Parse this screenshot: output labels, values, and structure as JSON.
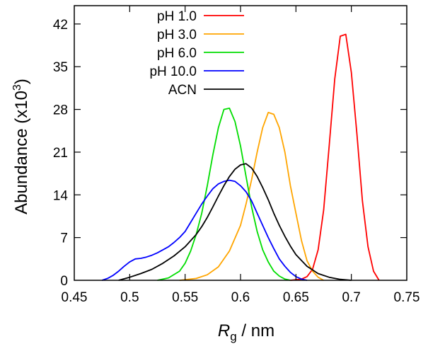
{
  "chart_data": {
    "type": "line",
    "title": "",
    "xlabel": {
      "symbol": "R",
      "subscript": "g",
      "unit": " / nm"
    },
    "ylabel": {
      "prefix": "Abundance (x10",
      "exponent": "3",
      "suffix": ")"
    },
    "xlim": [
      0.45,
      0.75
    ],
    "ylim": [
      0,
      45
    ],
    "xticks": [
      0.45,
      0.5,
      0.55,
      0.6,
      0.65,
      0.7,
      0.75
    ],
    "xtick_labels": [
      "0.45",
      "0.5",
      "0.55",
      "0.6",
      "0.65",
      "0.7",
      "0.75"
    ],
    "yticks": [
      0,
      7,
      14,
      21,
      28,
      35,
      42
    ],
    "ytick_labels": [
      "0",
      "7",
      "14",
      "21",
      "28",
      "35",
      "42"
    ],
    "grid": false,
    "legend_position": "top-left",
    "series": [
      {
        "name": "pH   1.0",
        "color": "#ff0000",
        "x": [
          0.645,
          0.655,
          0.66,
          0.665,
          0.67,
          0.675,
          0.68,
          0.685,
          0.69,
          0.695,
          0.7,
          0.705,
          0.71,
          0.715,
          0.72,
          0.725
        ],
        "y": [
          0,
          0.2,
          0.6,
          1.8,
          5,
          11.5,
          22,
          33,
          40,
          40.3,
          34,
          24,
          13,
          5.5,
          1.5,
          0
        ]
      },
      {
        "name": "pH   3.0",
        "color": "#ffa500",
        "x": [
          0.545,
          0.56,
          0.57,
          0.58,
          0.59,
          0.6,
          0.605,
          0.61,
          0.615,
          0.62,
          0.625,
          0.63,
          0.635,
          0.64,
          0.645,
          0.65,
          0.655,
          0.66,
          0.665,
          0.67,
          0.675
        ],
        "y": [
          0,
          0.3,
          0.9,
          2.2,
          4.8,
          9,
          12.5,
          16.5,
          21,
          25,
          27.5,
          27.2,
          25,
          21,
          15.5,
          11,
          6.5,
          3.2,
          1.5,
          0.5,
          0
        ]
      },
      {
        "name": "pH   6.0",
        "color": "#00dd00",
        "x": [
          0.525,
          0.535,
          0.545,
          0.55,
          0.555,
          0.56,
          0.565,
          0.57,
          0.575,
          0.58,
          0.585,
          0.59,
          0.595,
          0.6,
          0.605,
          0.61,
          0.615,
          0.62,
          0.625,
          0.63,
          0.635,
          0.64,
          0.645
        ],
        "y": [
          0,
          0.4,
          1.5,
          2.8,
          4.8,
          7.5,
          11,
          15.5,
          20.5,
          25,
          28,
          28.2,
          26,
          22,
          17,
          12,
          8,
          5,
          3,
          1.5,
          0.7,
          0.2,
          0
        ]
      },
      {
        "name": "pH 10.0",
        "color": "#0000ff",
        "x": [
          0.475,
          0.48,
          0.485,
          0.49,
          0.495,
          0.5,
          0.505,
          0.51,
          0.515,
          0.52,
          0.525,
          0.53,
          0.535,
          0.54,
          0.545,
          0.55,
          0.555,
          0.56,
          0.565,
          0.57,
          0.575,
          0.58,
          0.585,
          0.59,
          0.595,
          0.6,
          0.605,
          0.61,
          0.615,
          0.62,
          0.625,
          0.63,
          0.635,
          0.64,
          0.645,
          0.65,
          0.655,
          0.66
        ],
        "y": [
          0,
          0.3,
          0.8,
          1.5,
          2.3,
          3,
          3.5,
          3.6,
          3.8,
          4.1,
          4.5,
          5,
          5.5,
          6.2,
          7,
          8,
          9.5,
          11,
          12.5,
          13.8,
          15,
          15.8,
          16.2,
          16.4,
          16.2,
          15.5,
          14.5,
          13,
          11,
          9,
          7,
          5.2,
          3.5,
          2.3,
          1.3,
          0.6,
          0.2,
          0
        ]
      },
      {
        "name": "ACN",
        "color": "#000000",
        "x": [
          0.49,
          0.5,
          0.51,
          0.52,
          0.53,
          0.54,
          0.55,
          0.56,
          0.565,
          0.57,
          0.575,
          0.58,
          0.585,
          0.59,
          0.595,
          0.6,
          0.605,
          0.61,
          0.615,
          0.62,
          0.625,
          0.63,
          0.635,
          0.64,
          0.645,
          0.65,
          0.66,
          0.67,
          0.68,
          0.69,
          0.7
        ],
        "y": [
          0,
          0.5,
          1.1,
          1.8,
          2.8,
          4,
          5.5,
          7.5,
          8.8,
          10.3,
          12,
          13.8,
          15.5,
          17,
          18.2,
          18.9,
          19.1,
          18.4,
          17,
          15.2,
          13.2,
          11,
          9,
          7.2,
          5.6,
          4.2,
          2.3,
          1.1,
          0.5,
          0.15,
          0
        ]
      }
    ]
  }
}
